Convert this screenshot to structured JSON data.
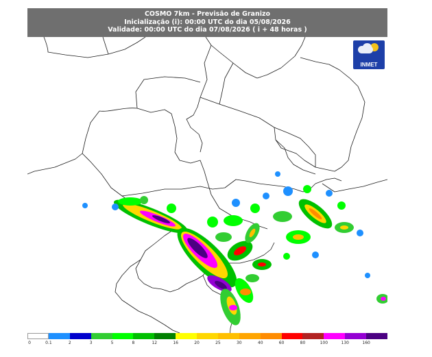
{
  "header": {
    "title": "COSMO 7km - Previsão de Granizo",
    "init_line": "Inicialização (i): 00:00 UTC do dia 05/08/2026",
    "valid_line": "Validade: 00:00 UTC do dia 07/08/2026 ( i + 48 horas )"
  },
  "logo": {
    "text": "INMET"
  },
  "legend": {
    "ticks": [
      "0",
      "0.1",
      "2",
      "3",
      "5",
      "8",
      "12",
      "16",
      "20",
      "25",
      "30",
      "40",
      "60",
      "80",
      "100",
      "130",
      "160"
    ],
    "colors": [
      "#ffffff",
      "#1e90ff",
      "#0000cd",
      "#32cd32",
      "#00ff00",
      "#00c000",
      "#008000",
      "#ffff00",
      "#ffd700",
      "#ffbf00",
      "#ffa500",
      "#ff8c00",
      "#ff0000",
      "#b22222",
      "#ff00ff",
      "#9400d3",
      "#4b0082"
    ]
  },
  "colors": {
    "header_bg": "#6f6f6f",
    "border_lines": "#1a1a1a",
    "logo_bg": "#1d3fa8"
  }
}
